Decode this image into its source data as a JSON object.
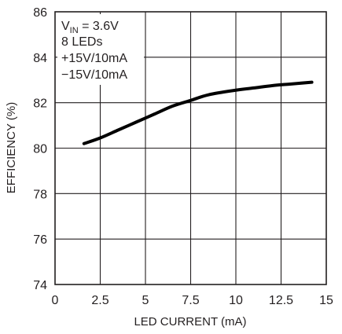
{
  "chart_data": {
    "type": "line",
    "xlabel": "LED CURRENT (mA)",
    "ylabel": "EFFICIENCY (%)",
    "xlim": [
      0,
      15
    ],
    "ylim": [
      74,
      86
    ],
    "xticks": [
      0,
      2.5,
      5,
      7.5,
      10,
      12.5,
      15
    ],
    "xtick_labels": [
      "0",
      "2.5",
      "5",
      "7.5",
      "10",
      "12.5",
      "15"
    ],
    "yticks": [
      74,
      76,
      78,
      80,
      82,
      84,
      86
    ],
    "ytick_labels": [
      "74",
      "76",
      "78",
      "80",
      "82",
      "84",
      "86"
    ],
    "grid": true,
    "annotation": {
      "vin_main": "V",
      "vin_sub": "IN",
      "vin_rest": " = 3.6V",
      "lines": [
        "8 LEDs",
        "+15V/10mA",
        "−15V/10mA"
      ]
    },
    "series": [
      {
        "color": "#000000",
        "x": [
          1.6,
          2.5,
          3.5,
          4.5,
          5.5,
          6.5,
          7.5,
          8.5,
          10,
          11,
          12,
          13,
          14.2
        ],
        "y": [
          80.2,
          80.45,
          80.8,
          81.15,
          81.5,
          81.85,
          82.1,
          82.35,
          82.55,
          82.65,
          82.75,
          82.82,
          82.9
        ]
      }
    ]
  }
}
